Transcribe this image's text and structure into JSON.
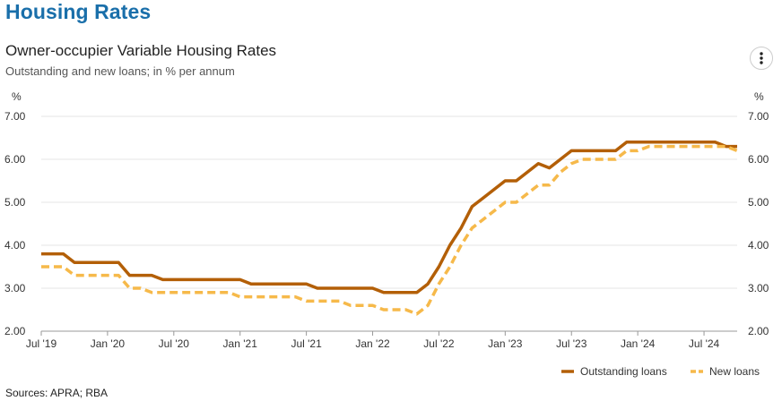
{
  "page": {
    "title": "Housing Rates"
  },
  "menu": {
    "icon": "kebab-menu-icon"
  },
  "footer": {
    "sources": "Sources: APRA; RBA"
  },
  "colors": {
    "outstanding": "#b35f07",
    "new": "#f6b94a",
    "grid": "#e6e6e6",
    "title": "#1a6faa"
  },
  "chart_data": {
    "type": "line",
    "title": "Owner-occupier Variable Housing Rates",
    "subtitle": "Outstanding and new loans; in % per annum",
    "ylabel_left": "%",
    "ylabel_right": "%",
    "ylim": [
      2.0,
      7.0
    ],
    "yticks": [
      "2.00",
      "3.00",
      "4.00",
      "5.00",
      "6.00",
      "7.00"
    ],
    "xlim": [
      "2019-07",
      "2024-10"
    ],
    "xticks": [
      {
        "date": "2019-07",
        "label": "Jul '19"
      },
      {
        "date": "2020-01",
        "label": "Jan '20"
      },
      {
        "date": "2020-07",
        "label": "Jul '20"
      },
      {
        "date": "2021-01",
        "label": "Jan '21"
      },
      {
        "date": "2021-07",
        "label": "Jul '21"
      },
      {
        "date": "2022-01",
        "label": "Jan '22"
      },
      {
        "date": "2022-07",
        "label": "Jul '22"
      },
      {
        "date": "2023-01",
        "label": "Jan '23"
      },
      {
        "date": "2023-07",
        "label": "Jul '23"
      },
      {
        "date": "2024-01",
        "label": "Jan '24"
      },
      {
        "date": "2024-07",
        "label": "Jul '24"
      }
    ],
    "grid": true,
    "legend": "bottom-right",
    "x": [
      "2019-07",
      "2019-08",
      "2019-09",
      "2019-10",
      "2019-11",
      "2019-12",
      "2020-01",
      "2020-02",
      "2020-03",
      "2020-04",
      "2020-05",
      "2020-06",
      "2020-07",
      "2020-08",
      "2020-09",
      "2020-10",
      "2020-11",
      "2020-12",
      "2021-01",
      "2021-02",
      "2021-03",
      "2021-04",
      "2021-05",
      "2021-06",
      "2021-07",
      "2021-08",
      "2021-09",
      "2021-10",
      "2021-11",
      "2021-12",
      "2022-01",
      "2022-02",
      "2022-03",
      "2022-04",
      "2022-05",
      "2022-06",
      "2022-07",
      "2022-08",
      "2022-09",
      "2022-10",
      "2022-11",
      "2022-12",
      "2023-01",
      "2023-02",
      "2023-03",
      "2023-04",
      "2023-05",
      "2023-06",
      "2023-07",
      "2023-08",
      "2023-09",
      "2023-10",
      "2023-11",
      "2023-12",
      "2024-01",
      "2024-02",
      "2024-03",
      "2024-04",
      "2024-05",
      "2024-06",
      "2024-07",
      "2024-08",
      "2024-09",
      "2024-10"
    ],
    "series": [
      {
        "name": "Outstanding loans",
        "style": "solid",
        "values": [
          3.8,
          3.8,
          3.8,
          3.6,
          3.6,
          3.6,
          3.6,
          3.6,
          3.3,
          3.3,
          3.3,
          3.2,
          3.2,
          3.2,
          3.2,
          3.2,
          3.2,
          3.2,
          3.2,
          3.1,
          3.1,
          3.1,
          3.1,
          3.1,
          3.1,
          3.0,
          3.0,
          3.0,
          3.0,
          3.0,
          3.0,
          2.9,
          2.9,
          2.9,
          2.9,
          3.1,
          3.5,
          4.0,
          4.4,
          4.9,
          5.1,
          5.3,
          5.5,
          5.5,
          5.7,
          5.9,
          5.8,
          6.0,
          6.2,
          6.2,
          6.2,
          6.2,
          6.2,
          6.4,
          6.4,
          6.4,
          6.4,
          6.4,
          6.4,
          6.4,
          6.4,
          6.4,
          6.3,
          6.3
        ]
      },
      {
        "name": "New loans",
        "style": "dashed",
        "values": [
          3.5,
          3.5,
          3.5,
          3.3,
          3.3,
          3.3,
          3.3,
          3.3,
          3.0,
          3.0,
          2.9,
          2.9,
          2.9,
          2.9,
          2.9,
          2.9,
          2.9,
          2.9,
          2.8,
          2.8,
          2.8,
          2.8,
          2.8,
          2.8,
          2.7,
          2.7,
          2.7,
          2.7,
          2.6,
          2.6,
          2.6,
          2.5,
          2.5,
          2.5,
          2.4,
          2.6,
          3.1,
          3.5,
          4.0,
          4.4,
          4.6,
          4.8,
          5.0,
          5.0,
          5.2,
          5.4,
          5.4,
          5.7,
          5.9,
          6.0,
          6.0,
          6.0,
          6.0,
          6.2,
          6.2,
          6.3,
          6.3,
          6.3,
          6.3,
          6.3,
          6.3,
          6.3,
          6.3,
          6.2
        ]
      }
    ]
  }
}
